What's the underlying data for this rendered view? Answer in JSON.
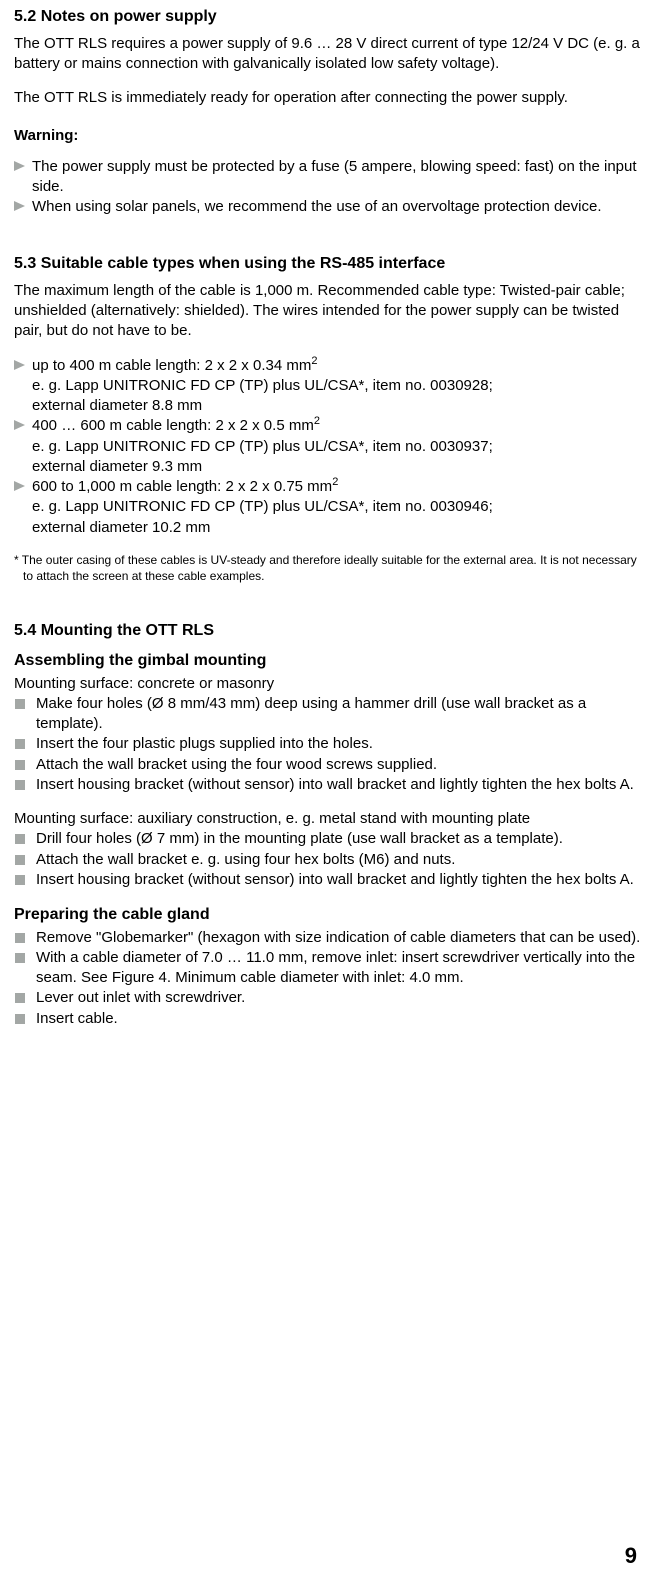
{
  "s52": {
    "heading": "5.2  Notes on power supply",
    "p1": "The OTT RLS requires a power supply of 9.6 …  28 V direct current of type 12/24 V DC (e. g. a battery or mains connection with galvanically isolated low safety voltage).",
    "p2": "The OTT RLS is immediately ready for operation after connecting the power supply.",
    "warning_heading": "Warning:",
    "warning_items": [
      "The power supply must be protected by a fuse (5 ampere, blowing speed: fast) on the input side.",
      "When using solar panels, we recommend the use of an overvoltage protection device."
    ]
  },
  "s53": {
    "heading": "5.3  Suitable cable types when using the RS-485 interface",
    "p1": "The maximum length of the cable is 1,000 m. Recommended cable type: Twisted-pair cable; unshielded (alternatively: shielded). The wires intended for the power supply can be twisted pair, but do not have to be.",
    "cables": [
      {
        "line1a": "up to 400 m cable length: 2 x 2 x 0.34 mm",
        "line1b": "2",
        "line2": "e. g. Lapp UNITRONIC FD CP (TP) plus UL/CSA*, item no. 0030928;",
        "line3": "external diameter 8.8 mm"
      },
      {
        "line1a": "400 … 600 m cable length: 2 x 2 x 0.5 mm",
        "line1b": "2",
        "line2": "e. g. Lapp UNITRONIC FD CP (TP) plus UL/CSA*, item no. 0030937;",
        "line3": "external diameter 9.3 mm"
      },
      {
        "line1a": "600 to 1,000 m cable length: 2 x 2 x 0.75 mm",
        "line1b": "2",
        "line2": "e. g. Lapp UNITRONIC FD CP (TP) plus UL/CSA*, item no. 0030946;",
        "line3": "external diameter 10.2 mm"
      }
    ],
    "footnote": "* The outer casing of these cables is UV-steady and therefore ideally suitable for the external area. It is not necessary to attach the screen at these cable examples."
  },
  "s54": {
    "heading": "5.4  Mounting the OTT RLS",
    "sub1_heading": "Assembling the gimbal mounting",
    "surface1": "Mounting surface: concrete or masonry",
    "surface1_items": [
      "Make four holes (Ø 8 mm/43 mm) deep using a hammer drill (use wall bracket as a template).",
      "Insert the four plastic plugs supplied into the holes.",
      "Attach the wall bracket using the four wood screws supplied.",
      "Insert housing bracket (without sensor) into wall bracket and lightly tighten the hex bolts A."
    ],
    "surface2": "Mounting surface: auxiliary construction, e. g. metal stand with mounting plate",
    "surface2_items": [
      "Drill four holes (Ø 7 mm) in the mounting plate (use wall bracket as a template).",
      "Attach the wall bracket e. g. using four hex bolts (M6) and nuts.",
      "Insert housing bracket (without sensor) into wall bracket and lightly tighten the hex bolts A."
    ],
    "sub2_heading": "Preparing the cable gland",
    "gland_items": [
      "Remove \"Globemarker\" (hexagon with size indication of cable diameters that can be used).",
      "With a cable diameter of 7.0 … 11.0 mm, remove inlet: insert screwdriver vertically into the seam. See Figure 4. Minimum cable diameter with inlet: 4.0 mm.",
      "Lever out inlet with screwdriver.",
      "Insert cable."
    ]
  },
  "page_number": "9"
}
